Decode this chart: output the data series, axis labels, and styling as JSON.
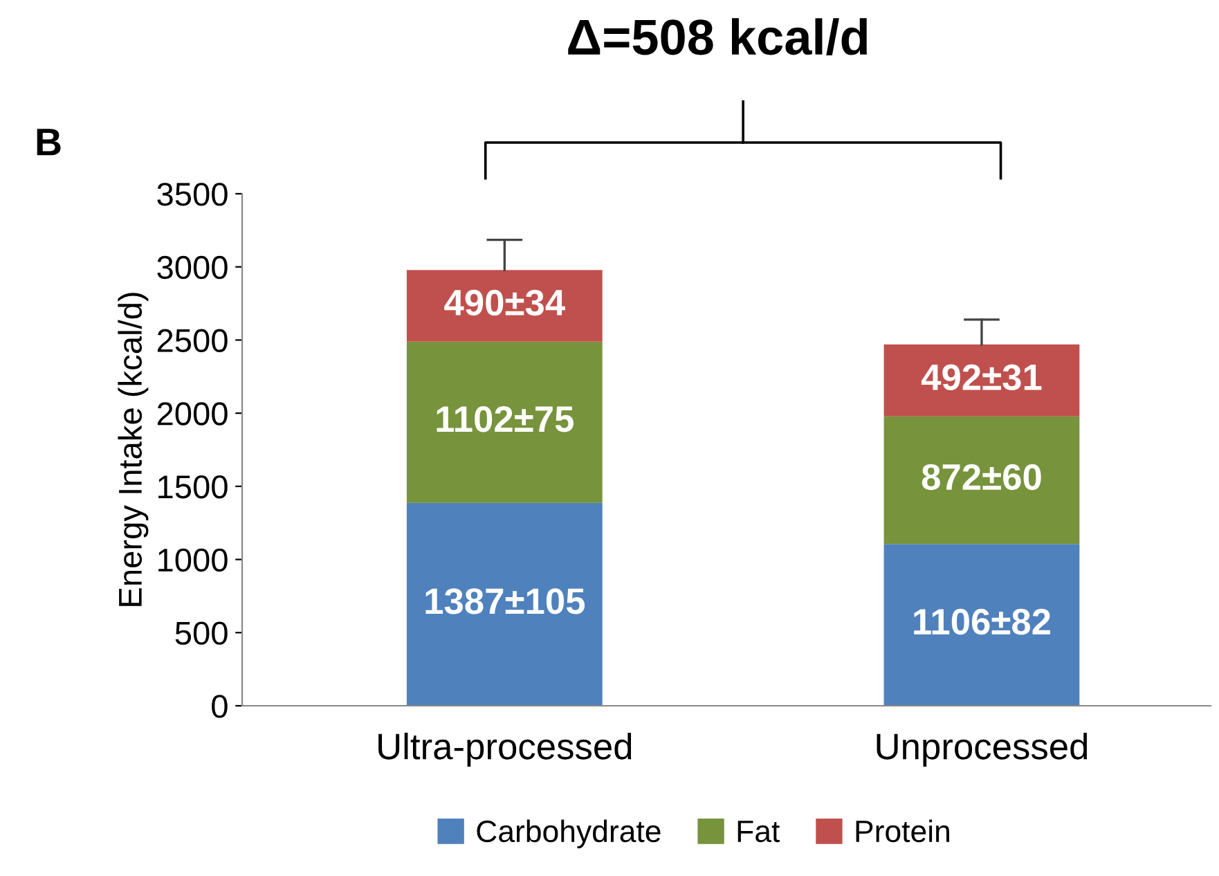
{
  "chart_data": {
    "type": "bar",
    "title": "Δ=508 kcal/d",
    "ylabel": "Energy Intake (kcal/d)",
    "annotations": [
      "B"
    ],
    "categories": [
      "Ultra-processed",
      "Unprocessed"
    ],
    "stacked": true,
    "series": [
      {
        "name": "Carbohydrate",
        "color": "#4f81bd",
        "values": [
          1387,
          1106
        ],
        "value_labels": [
          "1387±105",
          "1106±82"
        ]
      },
      {
        "name": "Fat",
        "color": "#77933c",
        "values": [
          1102,
          872
        ],
        "value_labels": [
          "1102±75",
          "872±60"
        ]
      },
      {
        "name": "Protein",
        "color": "#c0504d",
        "values": [
          490,
          492
        ],
        "value_labels": [
          "490±34",
          "492±31"
        ],
        "errors": [
          [
            2979,
            3185
          ],
          [
            2470,
            2640
          ]
        ]
      }
    ],
    "ylim": [
      0,
      3500
    ],
    "yticks": [
      0,
      500,
      1000,
      1500,
      2000,
      2500,
      3000,
      3500
    ],
    "grid": false,
    "legend": "bottom"
  }
}
